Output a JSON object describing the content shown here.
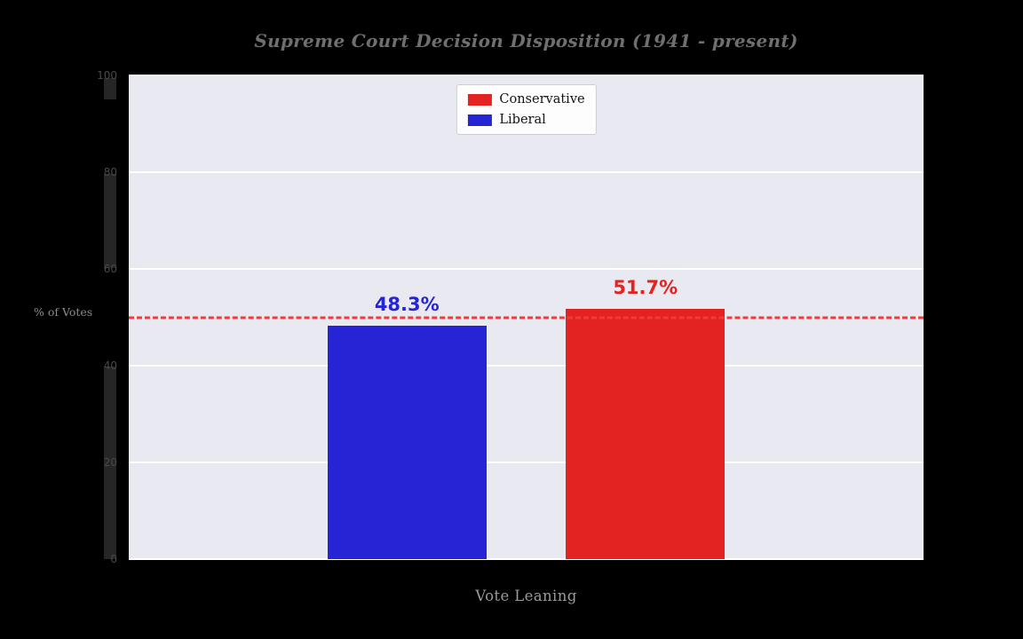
{
  "chart_data": {
    "type": "bar",
    "title": "Supreme Court Decision Disposition (1941 - present)",
    "categories": [
      "Liberal",
      "Conservative"
    ],
    "values": [
      48.3,
      51.7
    ],
    "bar_labels": [
      "48.3%",
      "51.7%"
    ],
    "bar_colors": [
      "#2525d5",
      "#e32222"
    ],
    "xlabel": "Vote Leaning",
    "ylabel": "% of Votes",
    "ylim": [
      0,
      100
    ],
    "yticks": [
      0,
      20,
      40,
      60,
      80,
      100
    ],
    "grid": true,
    "plot_background": "#e9e9f1",
    "figure_background": "#000000",
    "reference_line": {
      "y": 50,
      "color": "#ef3b3b",
      "style": "dashed"
    },
    "legend": {
      "position": "top-center",
      "entries": [
        {
          "label": "Conservative",
          "color": "#e32222"
        },
        {
          "label": "Liberal",
          "color": "#2525d5"
        }
      ]
    }
  }
}
